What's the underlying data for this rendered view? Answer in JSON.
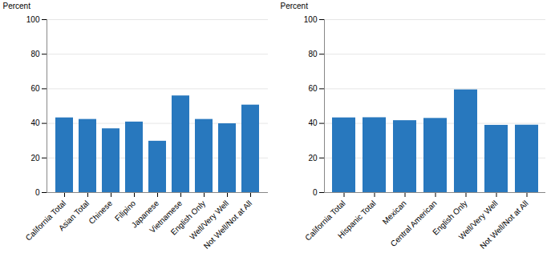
{
  "chart_data": [
    {
      "type": "bar",
      "categories": [
        "California Total",
        "Asian Total",
        "Chinese",
        "Filipino",
        "Japanese",
        "Vietnamese",
        "English Only",
        "Well/Very Well",
        "Not Well/Not at All"
      ],
      "values": [
        43.2,
        42.3,
        36.9,
        40.8,
        29.7,
        55.9,
        42.3,
        39.8,
        50.6
      ],
      "color": "#2878BE",
      "ylabel": "Percent",
      "ylim": [
        0,
        100
      ],
      "yticks": [
        0,
        20,
        40,
        60,
        80,
        100
      ],
      "grid": true
    },
    {
      "type": "bar",
      "categories": [
        "California Total",
        "Hispanic Total",
        "Mexican",
        "Central American",
        "English Only",
        "Well/Very Well",
        "Not Well/Not at All"
      ],
      "values": [
        43.2,
        43.3,
        41.6,
        42.9,
        59.4,
        38.9,
        39.0
      ],
      "color": "#2878BE",
      "ylabel": "Percent",
      "ylim": [
        0,
        100
      ],
      "yticks": [
        0,
        20,
        40,
        60,
        80,
        100
      ],
      "grid": true
    }
  ]
}
